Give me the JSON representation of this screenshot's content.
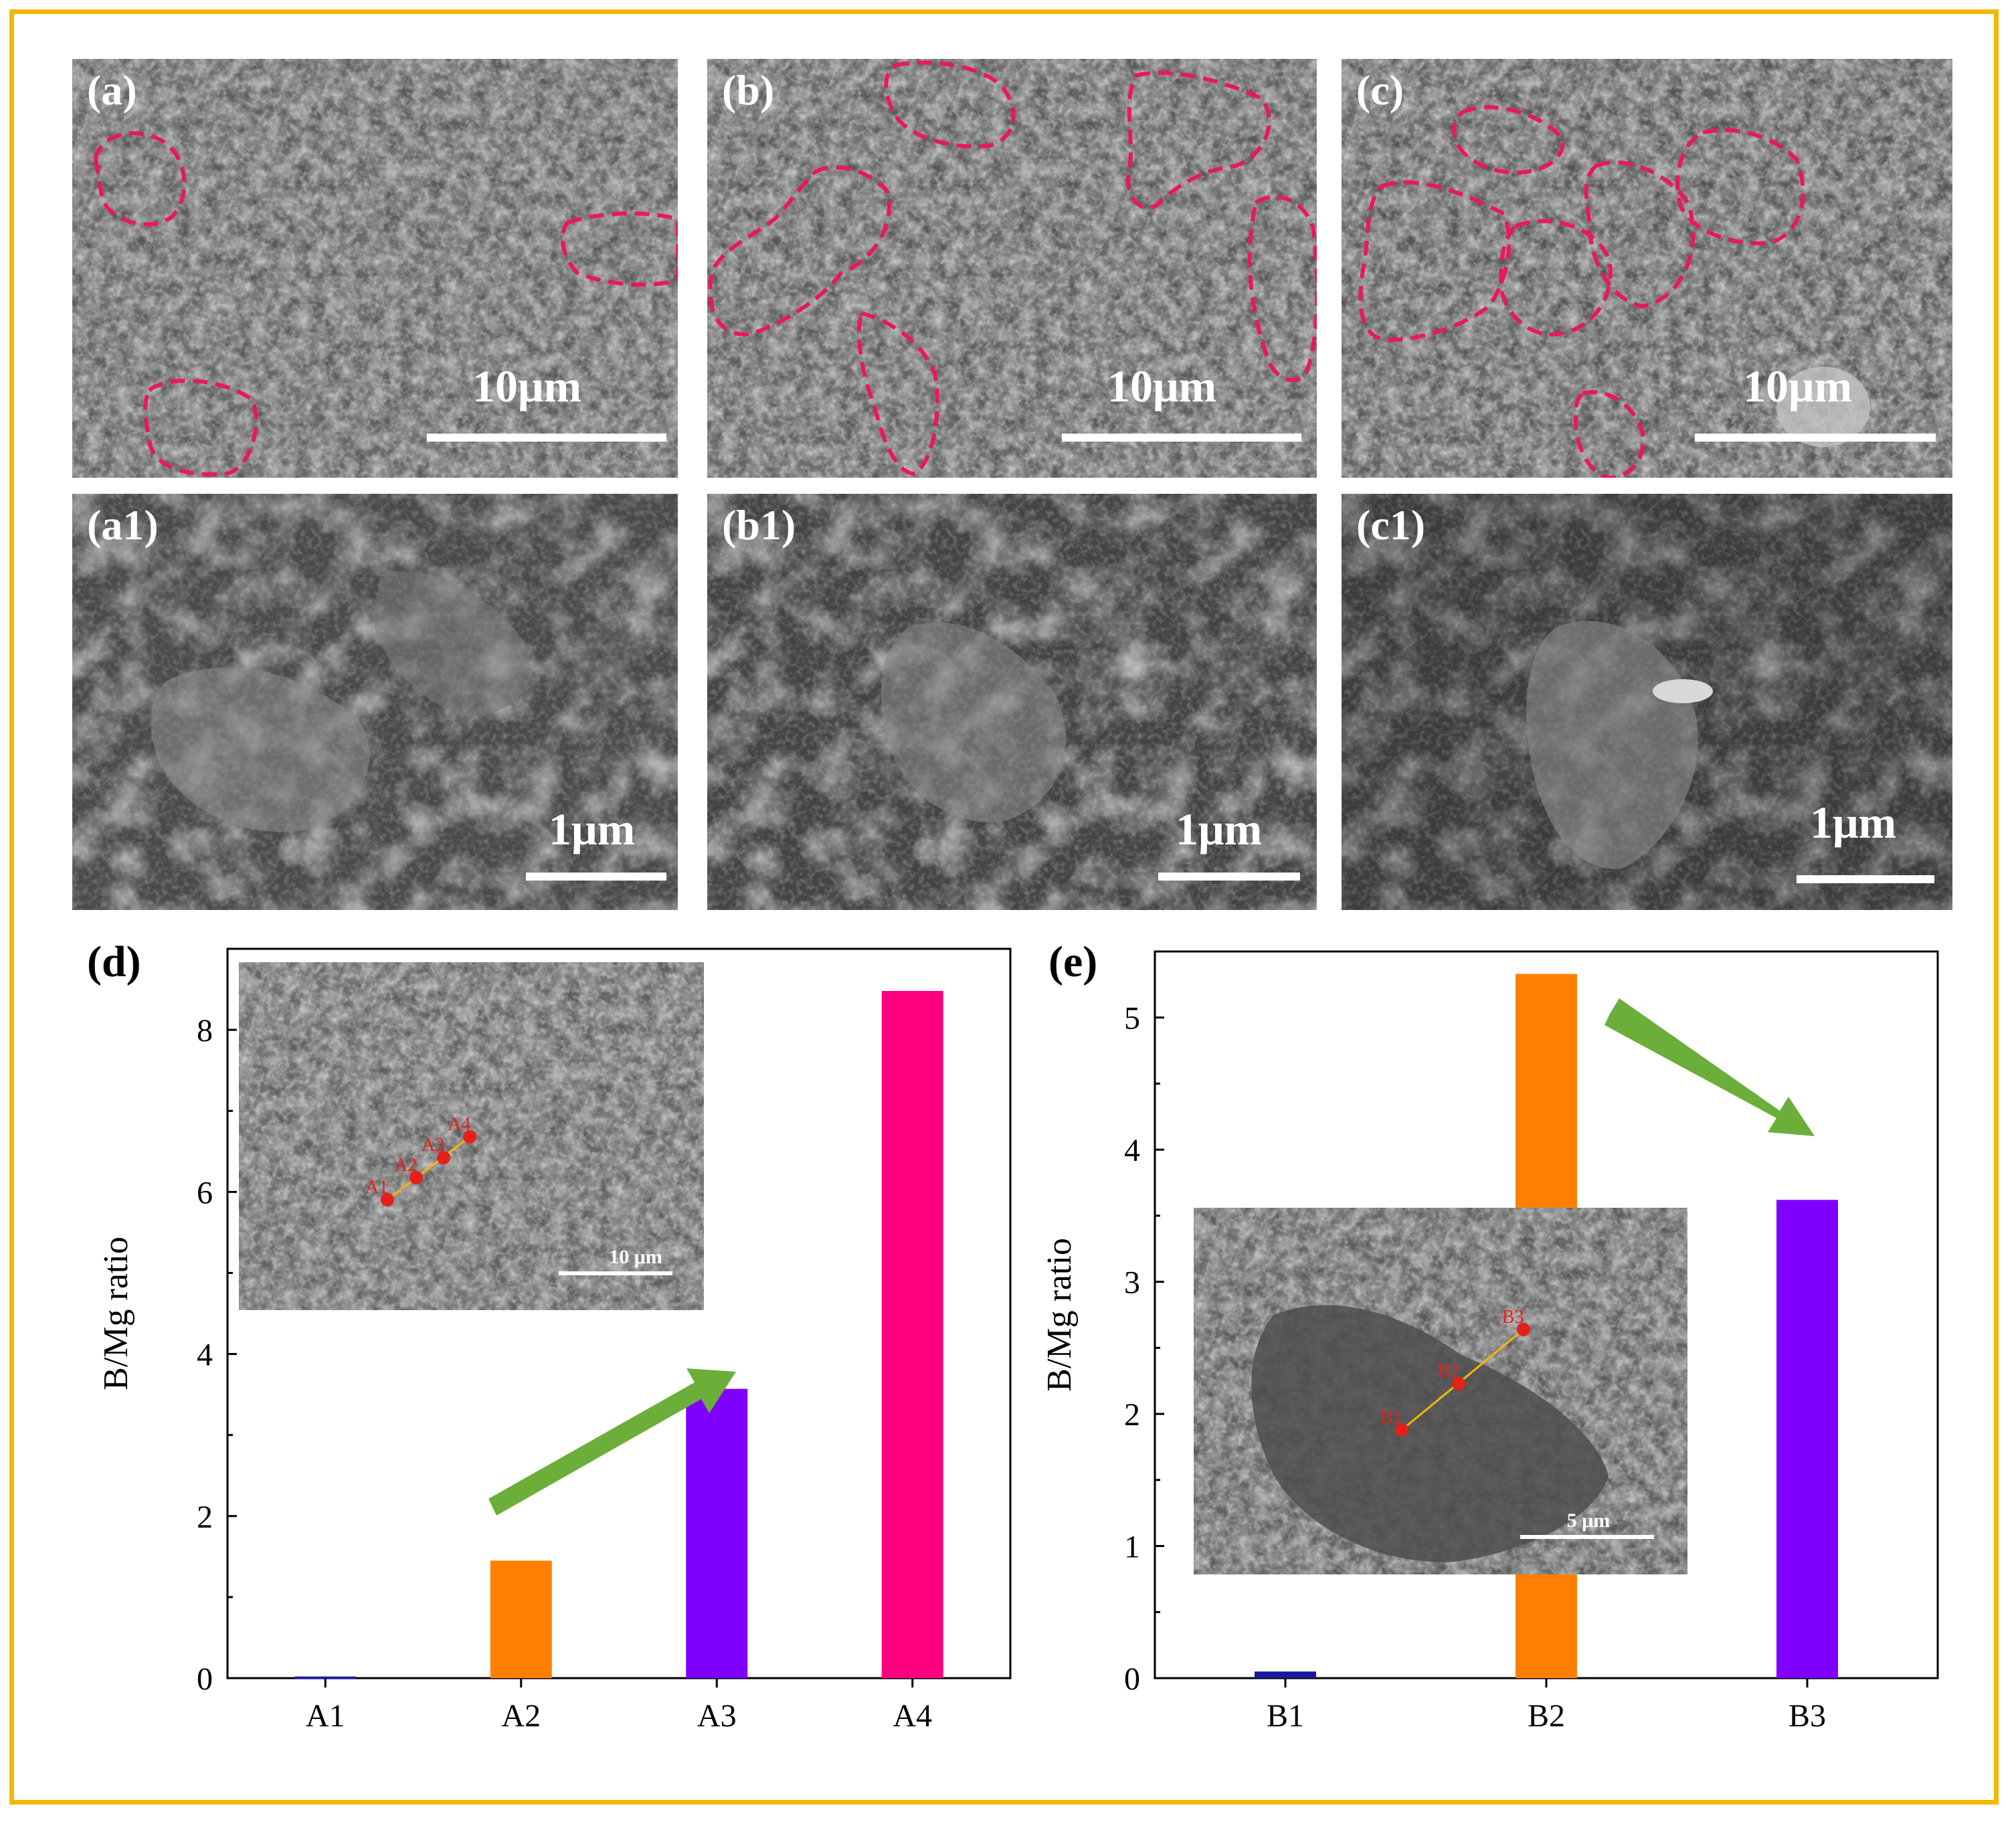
{
  "panels": {
    "a": {
      "label": "(a)",
      "scale": "10μm"
    },
    "b": {
      "label": "(b)",
      "scale": "10μm"
    },
    "c": {
      "label": "(c)",
      "scale": "10μm"
    },
    "a1": {
      "label": "(a1)",
      "scale": "1μm"
    },
    "b1": {
      "label": "(b1)",
      "scale": "1μm"
    },
    "c1": {
      "label": "(c1)",
      "scale": "1μm"
    }
  },
  "colors": {
    "frame": "#F5B800",
    "outline": "#E8195A",
    "arrow": "#6BAE3A",
    "marker": "#E5201A",
    "line": "#F5B800"
  },
  "chart_data": [
    {
      "panel": "(d)",
      "type": "bar",
      "categories": [
        "A1",
        "A2",
        "A3",
        "A4"
      ],
      "values": [
        0.02,
        1.45,
        3.57,
        8.48
      ],
      "colors": [
        "#1a1a9e",
        "#FF8000",
        "#8000FF",
        "#FF0080"
      ],
      "ylabel": "B/Mg ratio",
      "ylim": [
        0,
        9
      ],
      "yticks": [
        0,
        2,
        4,
        6,
        8
      ],
      "inset": {
        "scale": "10 μm",
        "points": [
          "A1",
          "A2",
          "A3",
          "A4"
        ]
      }
    },
    {
      "panel": "(e)",
      "type": "bar",
      "categories": [
        "B1",
        "B2",
        "B3"
      ],
      "values": [
        0.05,
        5.33,
        3.62
      ],
      "colors": [
        "#1a1a9e",
        "#FF8000",
        "#8000FF"
      ],
      "ylabel": "B/Mg ratio",
      "ylim": [
        0,
        5.5
      ],
      "yticks": [
        0,
        1,
        2,
        3,
        4,
        5
      ],
      "inset": {
        "scale": "5 μm",
        "points": [
          "B1",
          "B2",
          "B3"
        ]
      }
    }
  ]
}
